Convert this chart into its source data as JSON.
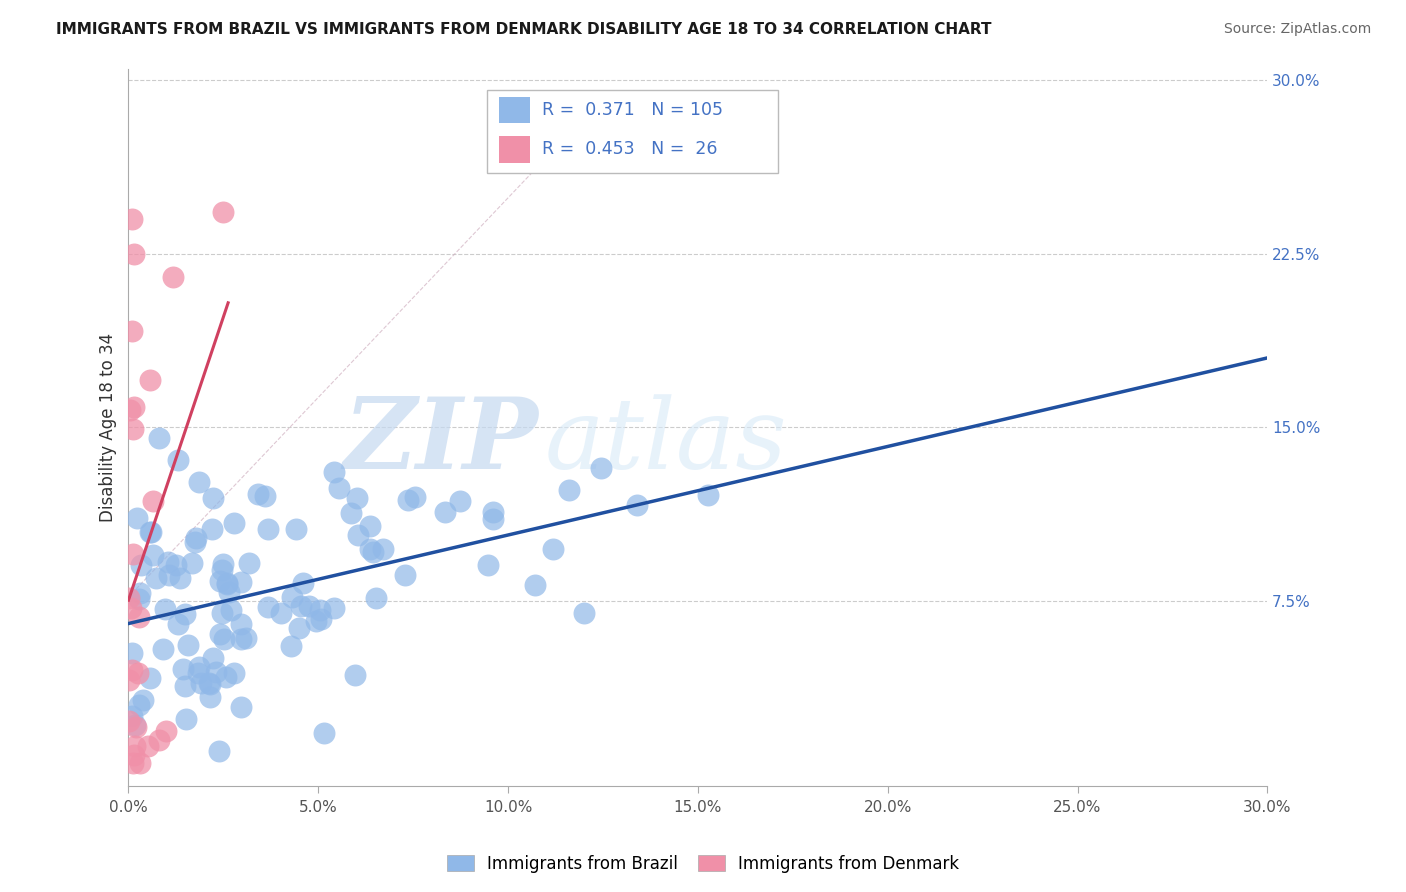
{
  "title": "IMMIGRANTS FROM BRAZIL VS IMMIGRANTS FROM DENMARK DISABILITY AGE 18 TO 34 CORRELATION CHART",
  "source": "Source: ZipAtlas.com",
  "ylabel": "Disability Age 18 to 34",
  "xlim": [
    0.0,
    0.3
  ],
  "ylim": [
    0.0,
    0.3
  ],
  "plot_ylim": [
    -0.005,
    0.305
  ],
  "xticks": [
    0.0,
    0.05,
    0.1,
    0.15,
    0.2,
    0.25,
    0.3
  ],
  "xtick_labels": [
    "0.0%",
    "5.0%",
    "10.0%",
    "15.0%",
    "20.0%",
    "25.0%",
    "30.0%"
  ],
  "yticks_right": [
    0.075,
    0.15,
    0.225,
    0.3
  ],
  "ytick_labels_right": [
    "7.5%",
    "15.0%",
    "22.5%",
    "30.0%"
  ],
  "brazil_R": 0.371,
  "brazil_N": 105,
  "denmark_R": 0.453,
  "denmark_N": 26,
  "brazil_color": "#90b8e8",
  "denmark_color": "#f090a8",
  "brazil_line_color": "#2050a0",
  "denmark_line_color": "#d04060",
  "legend_label_brazil": "Immigrants from Brazil",
  "legend_label_denmark": "Immigrants from Denmark",
  "title_fontsize": 11,
  "source_fontsize": 10,
  "tick_fontsize": 11,
  "right_tick_color": "#4472c4",
  "legend_text_color": "#4472c4"
}
